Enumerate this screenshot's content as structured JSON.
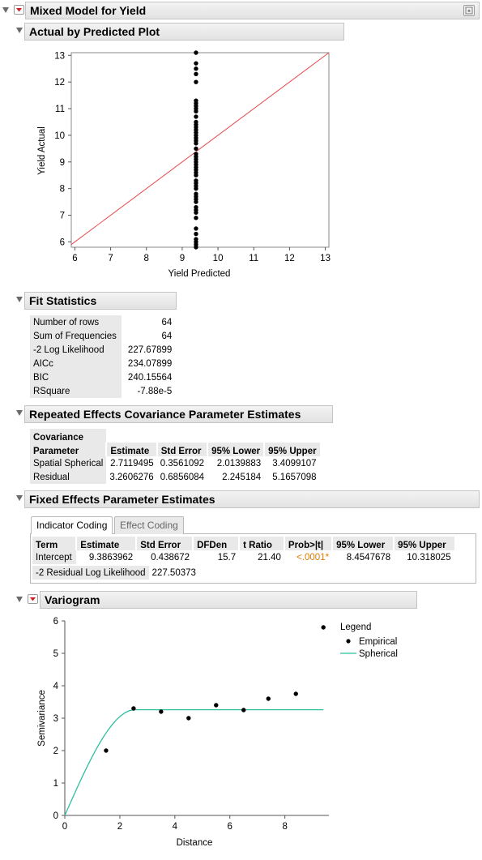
{
  "report": {
    "title": "Mixed Model for Yield"
  },
  "avp": {
    "title": "Actual by Predicted Plot",
    "xlabel": "Yield Predicted",
    "ylabel": "Yield Actual",
    "xticks": [
      "6",
      "7",
      "8",
      "9",
      "10",
      "11",
      "12",
      "13"
    ],
    "yticks": [
      "6",
      "7",
      "8",
      "9",
      "10",
      "11",
      "12",
      "13"
    ]
  },
  "fit": {
    "title": "Fit Statistics",
    "rows": [
      {
        "label": "Number of rows",
        "value": "64"
      },
      {
        "label": "Sum of Frequencies",
        "value": "64"
      },
      {
        "label": "-2 Log Likelihood",
        "value": "227.67899"
      },
      {
        "label": "AICc",
        "value": "234.07899"
      },
      {
        "label": "BIC",
        "value": "240.15564"
      },
      {
        "label": "RSquare",
        "value": "-7.88e-5"
      }
    ]
  },
  "rep": {
    "title": "Repeated Effects Covariance Parameter Estimates",
    "headers": [
      "Covariance",
      "Parameter",
      "Estimate",
      "Std Error",
      "95% Lower",
      "95% Upper"
    ],
    "rows": [
      [
        "Spatial Spherical",
        "2.7119495",
        "0.3561092",
        "2.0139883",
        "3.4099107"
      ],
      [
        "Residual",
        "3.2606276",
        "0.6856084",
        "2.245184",
        "5.1657098"
      ]
    ]
  },
  "fixed": {
    "title": "Fixed Effects Parameter Estimates",
    "tabs": [
      "Indicator Coding",
      "Effect Coding"
    ],
    "headers": [
      "Term",
      "Estimate",
      "Std Error",
      "DFDen",
      "t Ratio",
      "Prob>|t|",
      "95% Lower",
      "95% Upper"
    ],
    "row": [
      "Intercept",
      "9.3863962",
      "0.438672",
      "15.7",
      "21.40",
      "<.0001*",
      "8.4547678",
      "10.318025"
    ],
    "resid_label": "-2 Residual Log Likelihood",
    "resid_value": "227.50373",
    "prob_color": "#e07b00"
  },
  "variogram": {
    "title": "Variogram",
    "xlabel": "Distance",
    "ylabel": "Semivariance",
    "xticks": [
      "0",
      "2",
      "4",
      "6",
      "8"
    ],
    "yticks": [
      "0",
      "1",
      "2",
      "3",
      "4",
      "5",
      "6"
    ],
    "legend_title": "Legend",
    "legend_items": [
      "Empirical",
      "Spherical"
    ],
    "curve_color": "#2fbf9f"
  },
  "chart_data": [
    {
      "type": "scatter",
      "title": "Actual by Predicted Plot",
      "xlabel": "Yield Predicted",
      "ylabel": "Yield Actual",
      "xlim": [
        5.9,
        13.1
      ],
      "ylim": [
        5.8,
        13.1
      ],
      "grid": false,
      "reference_line": {
        "from": [
          5.9,
          5.9
        ],
        "to": [
          13.1,
          13.1
        ],
        "color": "#e8474b"
      },
      "x": [
        9.386,
        9.386,
        9.386,
        9.386,
        9.386,
        9.386,
        9.386,
        9.386,
        9.386,
        9.386,
        9.386,
        9.386,
        9.386,
        9.386,
        9.386,
        9.386,
        9.386,
        9.386,
        9.386,
        9.386,
        9.386,
        9.386,
        9.386,
        9.386,
        9.386,
        9.386,
        9.386,
        9.386,
        9.386,
        9.386,
        9.386,
        9.386,
        9.386,
        9.386,
        9.386,
        9.386,
        9.386,
        9.386,
        9.386,
        9.386,
        9.386,
        9.386,
        9.386,
        9.386,
        9.386,
        9.386,
        9.386,
        9.386
      ],
      "y": [
        13.1,
        12.7,
        12.5,
        12.3,
        12.0,
        11.3,
        11.2,
        11.1,
        11.0,
        10.9,
        10.7,
        10.5,
        10.4,
        10.3,
        10.2,
        10.1,
        10.0,
        9.9,
        9.8,
        9.7,
        9.5,
        9.3,
        9.2,
        9.1,
        9.0,
        8.9,
        8.8,
        8.7,
        8.6,
        8.5,
        8.3,
        8.2,
        8.1,
        8.0,
        7.8,
        7.7,
        7.6,
        7.5,
        7.3,
        7.2,
        7.1,
        6.9,
        6.5,
        6.3,
        6.1,
        6.0,
        5.9,
        5.8
      ]
    },
    {
      "type": "scatter",
      "title": "Variogram",
      "xlabel": "Distance",
      "ylabel": "Semivariance",
      "xlim": [
        0,
        9.6
      ],
      "ylim": [
        0,
        6
      ],
      "grid": false,
      "legend": "right",
      "series": [
        {
          "name": "Empirical",
          "x": [
            1.5,
            2.5,
            3.5,
            4.5,
            5.5,
            6.5,
            7.4,
            8.4,
            9.4
          ],
          "y": [
            2.0,
            3.3,
            3.2,
            3.0,
            3.4,
            3.25,
            3.6,
            3.75,
            5.8
          ]
        },
        {
          "name": "Spherical",
          "type": "line",
          "sill": 3.26,
          "range": 2.55,
          "x_end": 9.4
        }
      ]
    }
  ]
}
